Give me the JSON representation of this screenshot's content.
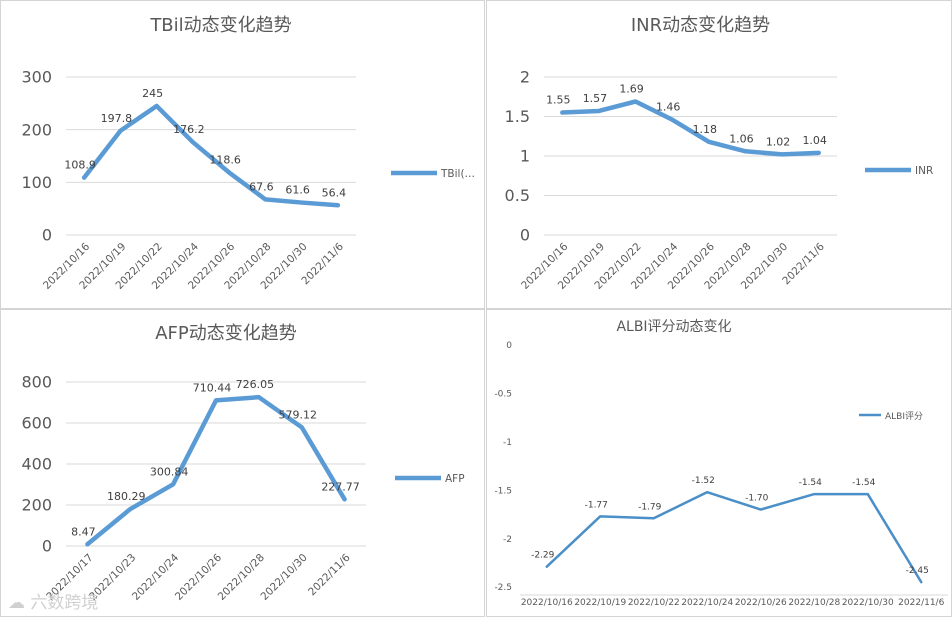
{
  "chart_data": [
    {
      "type": "line",
      "title": "TBil动态变化趋势",
      "categories": [
        "2022/10/16",
        "2022/10/19",
        "2022/10/22",
        "2022/10/24",
        "2022/10/26",
        "2022/10/28",
        "2022/10/30",
        "2022/11/6"
      ],
      "series": [
        {
          "name": "TBil(…",
          "values": [
            108.9,
            197.8,
            245,
            176.2,
            118.6,
            67.6,
            61.6,
            56.4
          ],
          "labels": [
            "108.9",
            "197.8",
            "245",
            "176.2",
            "118.6",
            "67.6",
            "61.6",
            "56.4"
          ]
        }
      ],
      "ylim": [
        0,
        300
      ],
      "yticks": [
        "0",
        "100",
        "200",
        "300"
      ],
      "grid": true,
      "legend": "right",
      "color": "#5b9bd5"
    },
    {
      "type": "line",
      "title": "INR动态变化趋势",
      "categories": [
        "2022/10/16",
        "2022/10/19",
        "2022/10/22",
        "2022/10/24",
        "2022/10/26",
        "2022/10/28",
        "2022/10/30",
        "2022/11/6"
      ],
      "series": [
        {
          "name": "INR",
          "values": [
            1.55,
            1.57,
            1.69,
            1.46,
            1.18,
            1.06,
            1.02,
            1.04
          ],
          "labels": [
            "1.55",
            "1.57",
            "1.69",
            "1.46",
            "1.18",
            "1.06",
            "1.02",
            "1.04"
          ]
        }
      ],
      "ylim": [
        0,
        2
      ],
      "yticks": [
        "0",
        "0.5",
        "1",
        "1.5",
        "2"
      ],
      "grid": true,
      "legend": "right",
      "color": "#5b9bd5"
    },
    {
      "type": "line",
      "title": "AFP动态变化趋势",
      "categories": [
        "2022/10/17",
        "2022/10/23",
        "2022/10/24",
        "2022/10/26",
        "2022/10/28",
        "2022/10/30",
        "2022/11/6"
      ],
      "series": [
        {
          "name": "AFP",
          "values": [
            8.47,
            180.29,
            300.84,
            710.44,
            726.05,
            579.12,
            227.77
          ],
          "labels": [
            "8.47",
            "180.29",
            "300.84",
            "710.44",
            "726.05",
            "579.12",
            "227.77"
          ]
        }
      ],
      "ylim": [
        0,
        800
      ],
      "yticks": [
        "0",
        "200",
        "400",
        "600",
        "800"
      ],
      "grid": true,
      "legend": "right",
      "color": "#5b9bd5"
    },
    {
      "type": "line",
      "title": "ALBI评分动态变化",
      "categories": [
        "2022/10/16",
        "2022/10/19",
        "2022/10/22",
        "2022/10/24",
        "2022/10/26",
        "2022/10/28",
        "2022/10/30",
        "2022/11/6"
      ],
      "series": [
        {
          "name": "ALBI评分",
          "values": [
            -2.29,
            -1.77,
            -1.79,
            -1.52,
            -1.7,
            -1.54,
            -1.54,
            -2.45
          ],
          "labels": [
            "-2.29",
            "-1.77",
            "-1.79",
            "-1.52",
            "-1.70",
            "-1.54",
            "-1.54",
            "-2.45"
          ]
        }
      ],
      "ylim": [
        -2.5,
        0
      ],
      "yticks": [
        "0",
        "-0.5",
        "-1",
        "-1.5",
        "-2",
        "-2.5"
      ],
      "grid": false,
      "legend": "top-right",
      "color": "#4a8fc7"
    }
  ],
  "watermark": "六数跨境"
}
